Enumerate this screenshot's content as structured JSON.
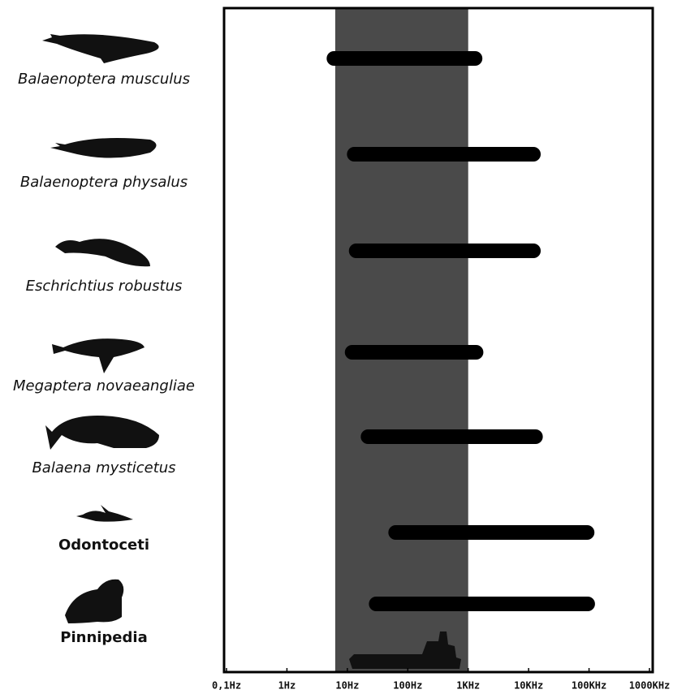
{
  "chart_data": {
    "type": "range",
    "categories": [
      "Balaenoptera musculus",
      "Balaenoptera physalus",
      "Eschrichtius robustus",
      "Megaptera novaeangliae",
      "Balaena mysticetus",
      "Odontoceti",
      "Pinnipedia"
    ],
    "label_italic": [
      true,
      true,
      true,
      true,
      true,
      false,
      false
    ],
    "low": [
      6,
      13,
      14,
      12,
      22,
      63,
      30
    ],
    "high": [
      1300,
      12000,
      12000,
      1350,
      13000,
      93000,
      95000
    ],
    "color": "#000000",
    "band": {
      "from": 6.3,
      "to": 1000,
      "color": "#4a4a4a"
    },
    "xscale": "log",
    "xlim": [
      0.1,
      1000000
    ],
    "xticks": [
      {
        "value": 0.1,
        "label": "0,1Hz"
      },
      {
        "value": 1,
        "label": "1Hz"
      },
      {
        "value": 10,
        "label": "10Hz"
      },
      {
        "value": 100,
        "label": "100Hz"
      },
      {
        "value": 1000,
        "label": "1KHz"
      },
      {
        "value": 10000,
        "label": "10KHz"
      },
      {
        "value": 100000,
        "label": "100KHz"
      },
      {
        "value": 1000000,
        "label": "1000KHz"
      }
    ]
  }
}
